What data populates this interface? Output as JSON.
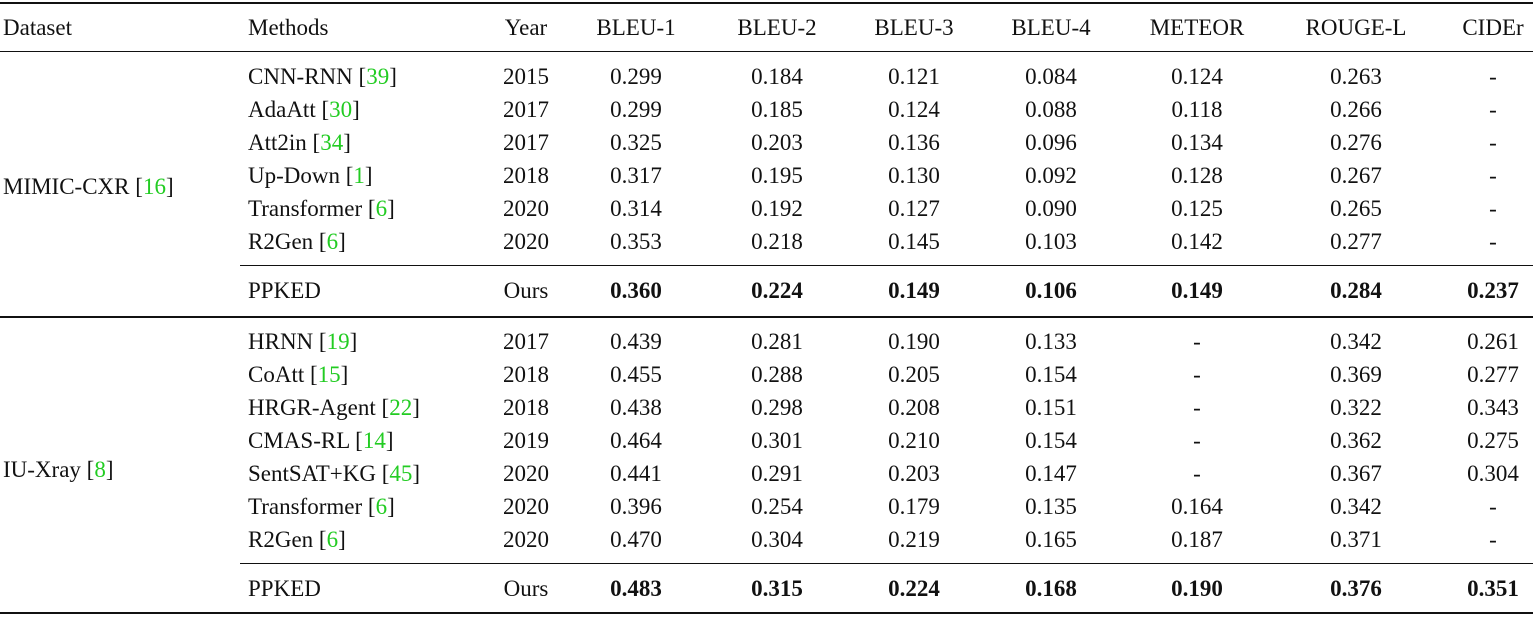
{
  "header": {
    "dataset": "Dataset",
    "methods": "Methods",
    "year": "Year",
    "bleu1": "BLEU-1",
    "bleu2": "BLEU-2",
    "bleu3": "BLEU-3",
    "bleu4": "BLEU-4",
    "meteor": "METEOR",
    "rouge": "ROUGE-L",
    "cider": "CIDEr"
  },
  "groups": [
    {
      "dataset": "MIMIC-CXR",
      "ref": "16",
      "rows": [
        {
          "method": "CNN-RNN",
          "ref": "39",
          "year": "2015",
          "b1": "0.299",
          "b2": "0.184",
          "b3": "0.121",
          "b4": "0.084",
          "meteor": "0.124",
          "rouge": "0.263",
          "cider": "-"
        },
        {
          "method": "AdaAtt",
          "ref": "30",
          "year": "2017",
          "b1": "0.299",
          "b2": "0.185",
          "b3": "0.124",
          "b4": "0.088",
          "meteor": "0.118",
          "rouge": "0.266",
          "cider": "-"
        },
        {
          "method": "Att2in",
          "ref": "34",
          "year": "2017",
          "b1": "0.325",
          "b2": "0.203",
          "b3": "0.136",
          "b4": "0.096",
          "meteor": "0.134",
          "rouge": "0.276",
          "cider": "-"
        },
        {
          "method": "Up-Down",
          "ref": "1",
          "year": "2018",
          "b1": "0.317",
          "b2": "0.195",
          "b3": "0.130",
          "b4": "0.092",
          "meteor": "0.128",
          "rouge": "0.267",
          "cider": "-"
        },
        {
          "method": "Transformer",
          "ref": "6",
          "year": "2020",
          "b1": "0.314",
          "b2": "0.192",
          "b3": "0.127",
          "b4": "0.090",
          "meteor": "0.125",
          "rouge": "0.265",
          "cider": "-"
        },
        {
          "method": "R2Gen",
          "ref": "6",
          "year": "2020",
          "b1": "0.353",
          "b2": "0.218",
          "b3": "0.145",
          "b4": "0.103",
          "meteor": "0.142",
          "rouge": "0.277",
          "cider": "-"
        }
      ],
      "ours": {
        "method": "PPKED",
        "year": "Ours",
        "b1": "0.360",
        "b2": "0.224",
        "b3": "0.149",
        "b4": "0.106",
        "meteor": "0.149",
        "rouge": "0.284",
        "cider": "0.237"
      }
    },
    {
      "dataset": "IU-Xray",
      "ref": "8",
      "rows": [
        {
          "method": "HRNN",
          "ref": "19",
          "year": "2017",
          "b1": "0.439",
          "b2": "0.281",
          "b3": "0.190",
          "b4": "0.133",
          "meteor": "-",
          "rouge": "0.342",
          "cider": "0.261"
        },
        {
          "method": "CoAtt",
          "ref": "15",
          "year": "2018",
          "b1": "0.455",
          "b2": "0.288",
          "b3": "0.205",
          "b4": "0.154",
          "meteor": "-",
          "rouge": "0.369",
          "cider": "0.277"
        },
        {
          "method": "HRGR-Agent",
          "ref": "22",
          "year": "2018",
          "b1": "0.438",
          "b2": "0.298",
          "b3": "0.208",
          "b4": "0.151",
          "meteor": "-",
          "rouge": "0.322",
          "cider": "0.343"
        },
        {
          "method": "CMAS-RL",
          "ref": "14",
          "year": "2019",
          "b1": "0.464",
          "b2": "0.301",
          "b3": "0.210",
          "b4": "0.154",
          "meteor": "-",
          "rouge": "0.362",
          "cider": "0.275"
        },
        {
          "method": "SentSAT+KG",
          "ref": "45",
          "year": "2020",
          "b1": "0.441",
          "b2": "0.291",
          "b3": "0.203",
          "b4": "0.147",
          "meteor": "-",
          "rouge": "0.367",
          "cider": "0.304"
        },
        {
          "method": "Transformer",
          "ref": "6",
          "year": "2020",
          "b1": "0.396",
          "b2": "0.254",
          "b3": "0.179",
          "b4": "0.135",
          "meteor": "0.164",
          "rouge": "0.342",
          "cider": "-"
        },
        {
          "method": "R2Gen",
          "ref": "6",
          "year": "2020",
          "b1": "0.470",
          "b2": "0.304",
          "b3": "0.219",
          "b4": "0.165",
          "meteor": "0.187",
          "rouge": "0.371",
          "cider": "-"
        }
      ],
      "ours": {
        "method": "PPKED",
        "year": "Ours",
        "b1": "0.483",
        "b2": "0.315",
        "b3": "0.224",
        "b4": "0.168",
        "meteor": "0.190",
        "rouge": "0.376",
        "cider": "0.351"
      }
    }
  ]
}
